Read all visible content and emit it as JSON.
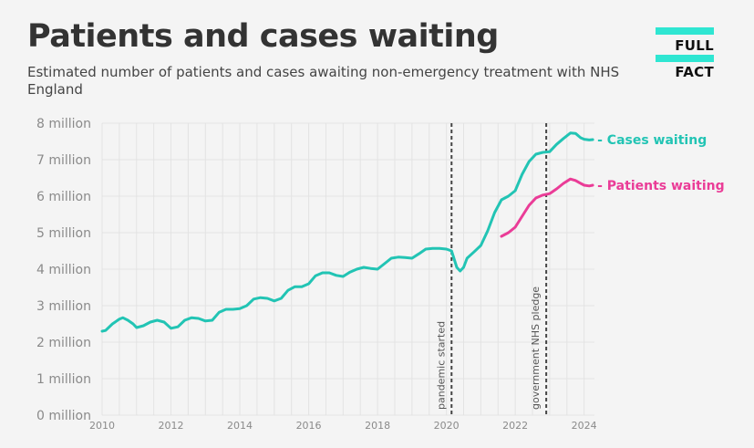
{
  "header": {
    "title": "Patients and cases waiting",
    "subtitle": "Estimated number of patients and cases awaiting non-emergency treatment with NHS England"
  },
  "logo": {
    "line1": "FULL",
    "line2": "FACT",
    "accent": "#2fe6d2"
  },
  "chart_data": {
    "type": "line",
    "xlim": [
      2010,
      2024.3
    ],
    "ylim": [
      0,
      8
    ],
    "x_ticks": [
      2010,
      2012,
      2014,
      2016,
      2018,
      2020,
      2022,
      2024
    ],
    "y_ticks": [
      0,
      1,
      2,
      3,
      4,
      5,
      6,
      7,
      8
    ],
    "y_tick_labels": [
      "0 million",
      "1 million",
      "2 million",
      "3 million",
      "4 million",
      "5 million",
      "6 million",
      "7 million",
      "8 million"
    ],
    "grid": true,
    "series": [
      {
        "name": "Cases waiting",
        "label": "- Cases waiting",
        "color": "#22c4b4",
        "points": [
          [
            2010.0,
            2.3
          ],
          [
            2010.1,
            2.32
          ],
          [
            2010.3,
            2.5
          ],
          [
            2010.5,
            2.63
          ],
          [
            2010.6,
            2.67
          ],
          [
            2010.75,
            2.6
          ],
          [
            2010.9,
            2.5
          ],
          [
            2011.0,
            2.4
          ],
          [
            2011.2,
            2.45
          ],
          [
            2011.4,
            2.55
          ],
          [
            2011.6,
            2.6
          ],
          [
            2011.8,
            2.55
          ],
          [
            2012.0,
            2.38
          ],
          [
            2012.2,
            2.42
          ],
          [
            2012.4,
            2.6
          ],
          [
            2012.6,
            2.67
          ],
          [
            2012.8,
            2.65
          ],
          [
            2013.0,
            2.58
          ],
          [
            2013.2,
            2.6
          ],
          [
            2013.4,
            2.82
          ],
          [
            2013.6,
            2.9
          ],
          [
            2013.8,
            2.9
          ],
          [
            2014.0,
            2.92
          ],
          [
            2014.2,
            3.0
          ],
          [
            2014.4,
            3.18
          ],
          [
            2014.6,
            3.22
          ],
          [
            2014.8,
            3.2
          ],
          [
            2015.0,
            3.13
          ],
          [
            2015.2,
            3.2
          ],
          [
            2015.4,
            3.42
          ],
          [
            2015.6,
            3.52
          ],
          [
            2015.8,
            3.52
          ],
          [
            2016.0,
            3.6
          ],
          [
            2016.2,
            3.82
          ],
          [
            2016.4,
            3.9
          ],
          [
            2016.6,
            3.9
          ],
          [
            2016.8,
            3.83
          ],
          [
            2017.0,
            3.8
          ],
          [
            2017.2,
            3.92
          ],
          [
            2017.4,
            4.0
          ],
          [
            2017.6,
            4.05
          ],
          [
            2017.8,
            4.02
          ],
          [
            2018.0,
            4.0
          ],
          [
            2018.2,
            4.15
          ],
          [
            2018.4,
            4.3
          ],
          [
            2018.6,
            4.33
          ],
          [
            2018.8,
            4.32
          ],
          [
            2019.0,
            4.3
          ],
          [
            2019.2,
            4.42
          ],
          [
            2019.4,
            4.55
          ],
          [
            2019.6,
            4.57
          ],
          [
            2019.8,
            4.57
          ],
          [
            2020.0,
            4.55
          ],
          [
            2020.15,
            4.5
          ],
          [
            2020.3,
            4.05
          ],
          [
            2020.4,
            3.95
          ],
          [
            2020.5,
            4.05
          ],
          [
            2020.6,
            4.3
          ],
          [
            2020.8,
            4.47
          ],
          [
            2021.0,
            4.65
          ],
          [
            2021.2,
            5.05
          ],
          [
            2021.4,
            5.55
          ],
          [
            2021.6,
            5.9
          ],
          [
            2021.8,
            6.0
          ],
          [
            2022.0,
            6.15
          ],
          [
            2022.2,
            6.6
          ],
          [
            2022.4,
            6.95
          ],
          [
            2022.6,
            7.15
          ],
          [
            2022.8,
            7.2
          ],
          [
            2023.0,
            7.22
          ],
          [
            2023.2,
            7.42
          ],
          [
            2023.4,
            7.58
          ],
          [
            2023.6,
            7.73
          ],
          [
            2023.75,
            7.72
          ],
          [
            2023.9,
            7.6
          ],
          [
            2024.0,
            7.56
          ],
          [
            2024.15,
            7.54
          ],
          [
            2024.25,
            7.55
          ]
        ]
      },
      {
        "name": "Patients waiting",
        "label": "- Patients waiting",
        "color": "#ea3c97",
        "points": [
          [
            2021.6,
            4.9
          ],
          [
            2021.8,
            5.0
          ],
          [
            2022.0,
            5.15
          ],
          [
            2022.2,
            5.45
          ],
          [
            2022.4,
            5.75
          ],
          [
            2022.6,
            5.95
          ],
          [
            2022.8,
            6.03
          ],
          [
            2023.0,
            6.07
          ],
          [
            2023.2,
            6.2
          ],
          [
            2023.4,
            6.35
          ],
          [
            2023.6,
            6.47
          ],
          [
            2023.75,
            6.43
          ],
          [
            2023.9,
            6.35
          ],
          [
            2024.0,
            6.3
          ],
          [
            2024.15,
            6.28
          ],
          [
            2024.25,
            6.3
          ]
        ]
      }
    ],
    "annotations": [
      {
        "x": 2020.15,
        "label": "pandemic started"
      },
      {
        "x": 2022.9,
        "label": "government NHS pledge"
      }
    ]
  }
}
